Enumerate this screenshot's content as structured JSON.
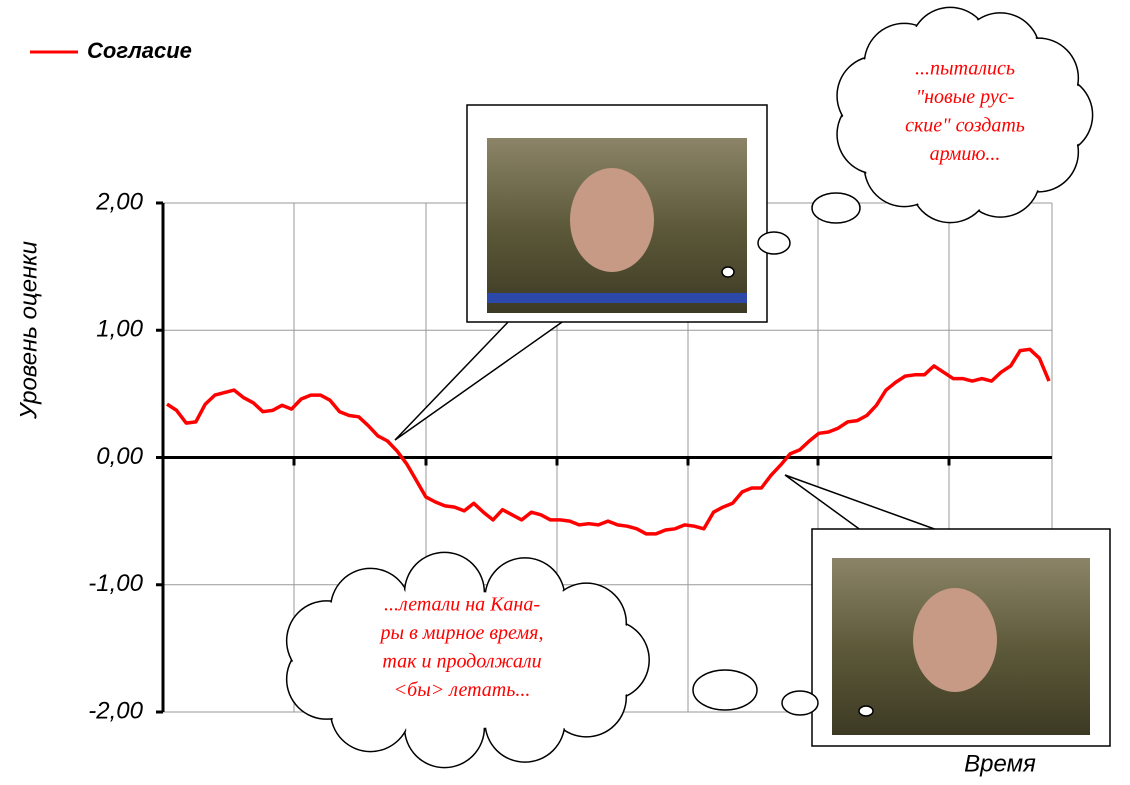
{
  "chart_data": {
    "type": "line",
    "y_label": "Уровень оценки",
    "x_label": "Время",
    "series": [
      {
        "name": "Согласие",
        "color": "#ff0000",
        "values": [
          0.42,
          0.37,
          0.27,
          0.28,
          0.42,
          0.49,
          0.51,
          0.53,
          0.47,
          0.43,
          0.36,
          0.37,
          0.41,
          0.38,
          0.46,
          0.49,
          0.49,
          0.45,
          0.36,
          0.33,
          0.32,
          0.25,
          0.17,
          0.13,
          0.05,
          -0.05,
          -0.18,
          -0.31,
          -0.35,
          -0.38,
          -0.39,
          -0.42,
          -0.36,
          -0.43,
          -0.49,
          -0.41,
          -0.45,
          -0.49,
          -0.43,
          -0.45,
          -0.49,
          -0.49,
          -0.5,
          -0.53,
          -0.52,
          -0.53,
          -0.5,
          -0.53,
          -0.54,
          -0.56,
          -0.6,
          -0.6,
          -0.57,
          -0.56,
          -0.53,
          -0.54,
          -0.56,
          -0.43,
          -0.39,
          -0.36,
          -0.27,
          -0.24,
          -0.24,
          -0.14,
          -0.06,
          0.03,
          0.06,
          0.13,
          0.19,
          0.2,
          0.23,
          0.28,
          0.29,
          0.33,
          0.41,
          0.53,
          0.59,
          0.64,
          0.65,
          0.65,
          0.72,
          0.67,
          0.62,
          0.62,
          0.6,
          0.62,
          0.6,
          0.67,
          0.72,
          0.84,
          0.85,
          0.78,
          0.6
        ]
      }
    ],
    "ylim": [
      -2,
      2
    ],
    "yticks": [
      {
        "value": -2,
        "label": "-2,00"
      },
      {
        "value": -1,
        "label": "-1,00"
      },
      {
        "value": 0,
        "label": "0,00"
      },
      {
        "value": 1,
        "label": "1,00"
      },
      {
        "value": 2,
        "label": "2,00"
      }
    ],
    "grid": true,
    "legend": "top-left",
    "annotations": [
      {
        "lines": [
          "...пытались",
          "\"новые рус-",
          "ские\" создать",
          "армию..."
        ]
      },
      {
        "lines": [
          "...летали на Кана-",
          "ры в мирное время,",
          "так и продолжали",
          "<бы> летать..."
        ]
      }
    ]
  }
}
